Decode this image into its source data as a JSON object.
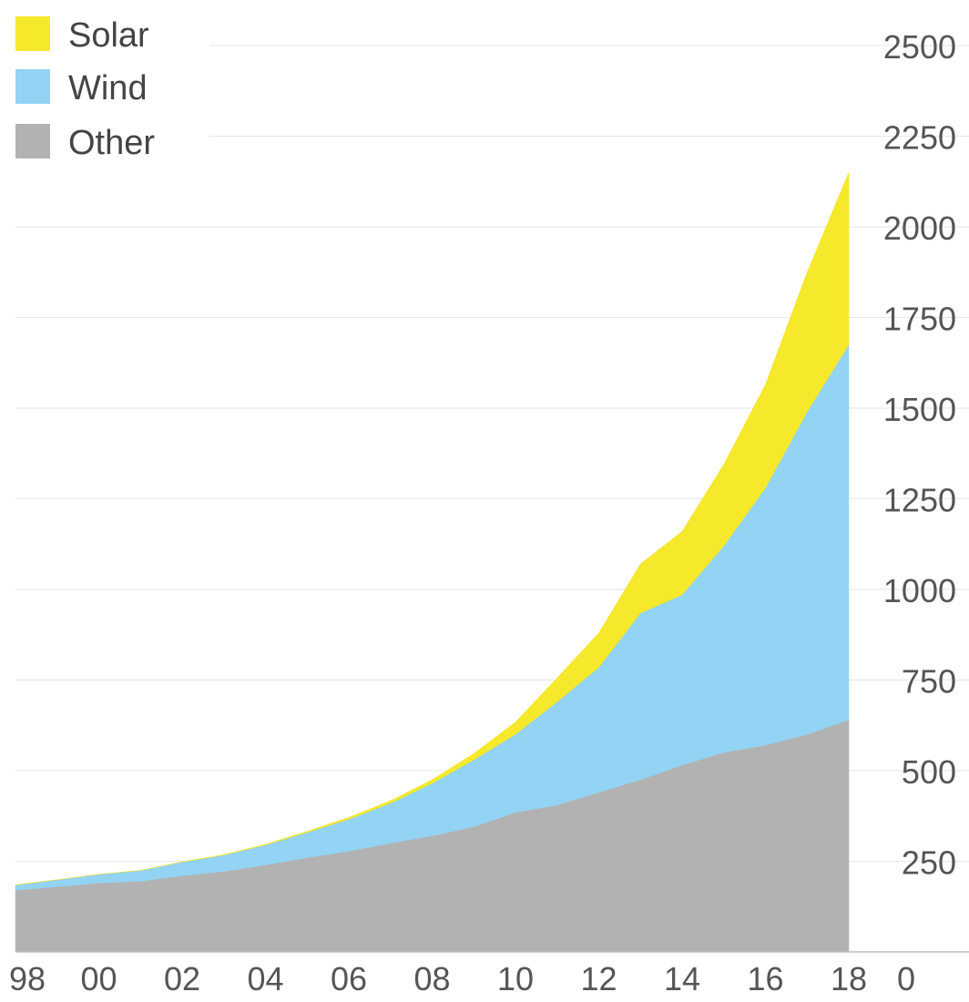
{
  "chart_data": {
    "type": "area",
    "stacked": true,
    "x": [
      1998,
      1999,
      2000,
      2001,
      2002,
      2003,
      2004,
      2005,
      2006,
      2007,
      2008,
      2009,
      2010,
      2011,
      2012,
      2013,
      2014,
      2015,
      2016,
      2017,
      2018
    ],
    "x_tick_labels": [
      "98",
      "00",
      "02",
      "04",
      "06",
      "08",
      "10",
      "12",
      "14",
      "16",
      "18"
    ],
    "x_tick_values": [
      1998,
      2000,
      2002,
      2004,
      2006,
      2008,
      2010,
      2012,
      2014,
      2016,
      2018
    ],
    "series": [
      {
        "name": "Other",
        "color": "#b2b2b2",
        "values": [
          170,
          180,
          190,
          195,
          210,
          222,
          240,
          260,
          278,
          300,
          320,
          345,
          385,
          405,
          440,
          475,
          515,
          550,
          570,
          600,
          640
        ]
      },
      {
        "name": "Wind",
        "color": "#93d3f3",
        "values": [
          15,
          19,
          24,
          30,
          38,
          45,
          55,
          70,
          88,
          110,
          145,
          185,
          215,
          285,
          345,
          460,
          470,
          570,
          710,
          890,
          1035
        ]
      },
      {
        "name": "Solar",
        "color": "#f6e82a",
        "values": [
          0,
          0,
          0,
          0,
          1,
          1,
          2,
          3,
          5,
          7,
          10,
          17,
          34,
          66,
          95,
          135,
          175,
          225,
          285,
          385,
          475
        ]
      }
    ],
    "ylim": [
      0,
      2500
    ],
    "y_ticks": [
      0,
      250,
      500,
      750,
      1000,
      1250,
      1500,
      1750,
      2000,
      2250,
      2500
    ],
    "y_axis_position": "right",
    "grid": true,
    "legend_position": "top-left",
    "legend_order": [
      "Solar",
      "Wind",
      "Other"
    ],
    "title": "",
    "xlabel": "",
    "ylabel": ""
  }
}
